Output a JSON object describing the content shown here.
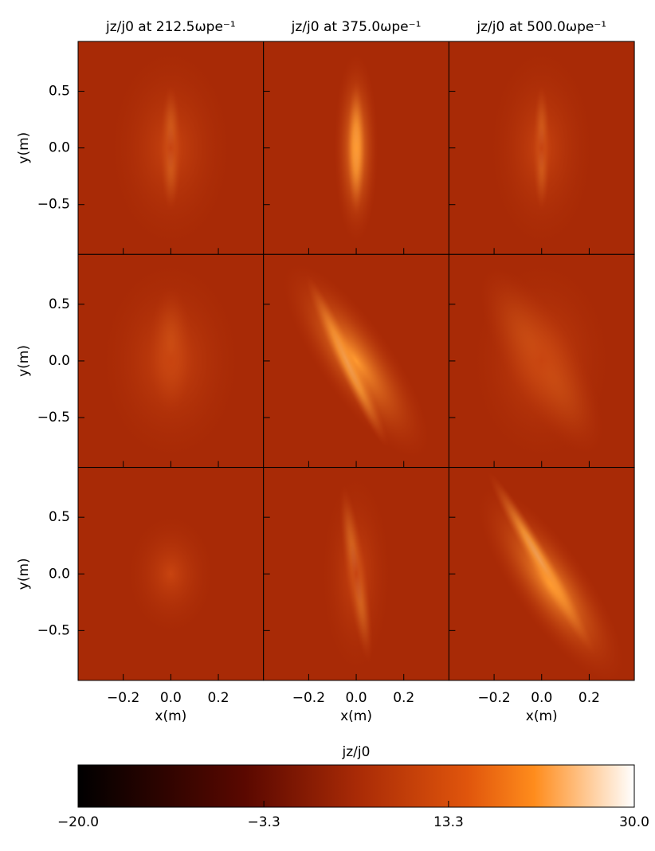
{
  "chart_data": {
    "type": "heatmap",
    "panel_titles": [
      "jz/j0 at 212.5ωpe⁻¹",
      "jz/j0 at 375.0ωpe⁻¹",
      "jz/j0 at 500.0ωpe⁻¹"
    ],
    "xlabel": "x(m)",
    "ylabel": "y(m)",
    "xlim": [
      -0.39,
      0.39
    ],
    "ylim": [
      -0.94,
      0.94
    ],
    "xticks": [
      {
        "value": -0.2,
        "label": "−0.2"
      },
      {
        "value": 0,
        "label": "0.0"
      },
      0.2
    ],
    "yticks": [
      {
        "value": -0.5,
        "label": "−0.5"
      },
      {
        "value": 0,
        "label": "0.0"
      },
      0.5
    ],
    "colorbar": {
      "label": "jz/j0",
      "lim": [
        -20,
        30
      ],
      "ticks": [
        {
          "value": -20,
          "label": "−20.0"
        },
        {
          "value": -3.3,
          "label": "−3.3"
        },
        13.3,
        {
          "value": 30,
          "label": "30.0"
        }
      ]
    }
  }
}
